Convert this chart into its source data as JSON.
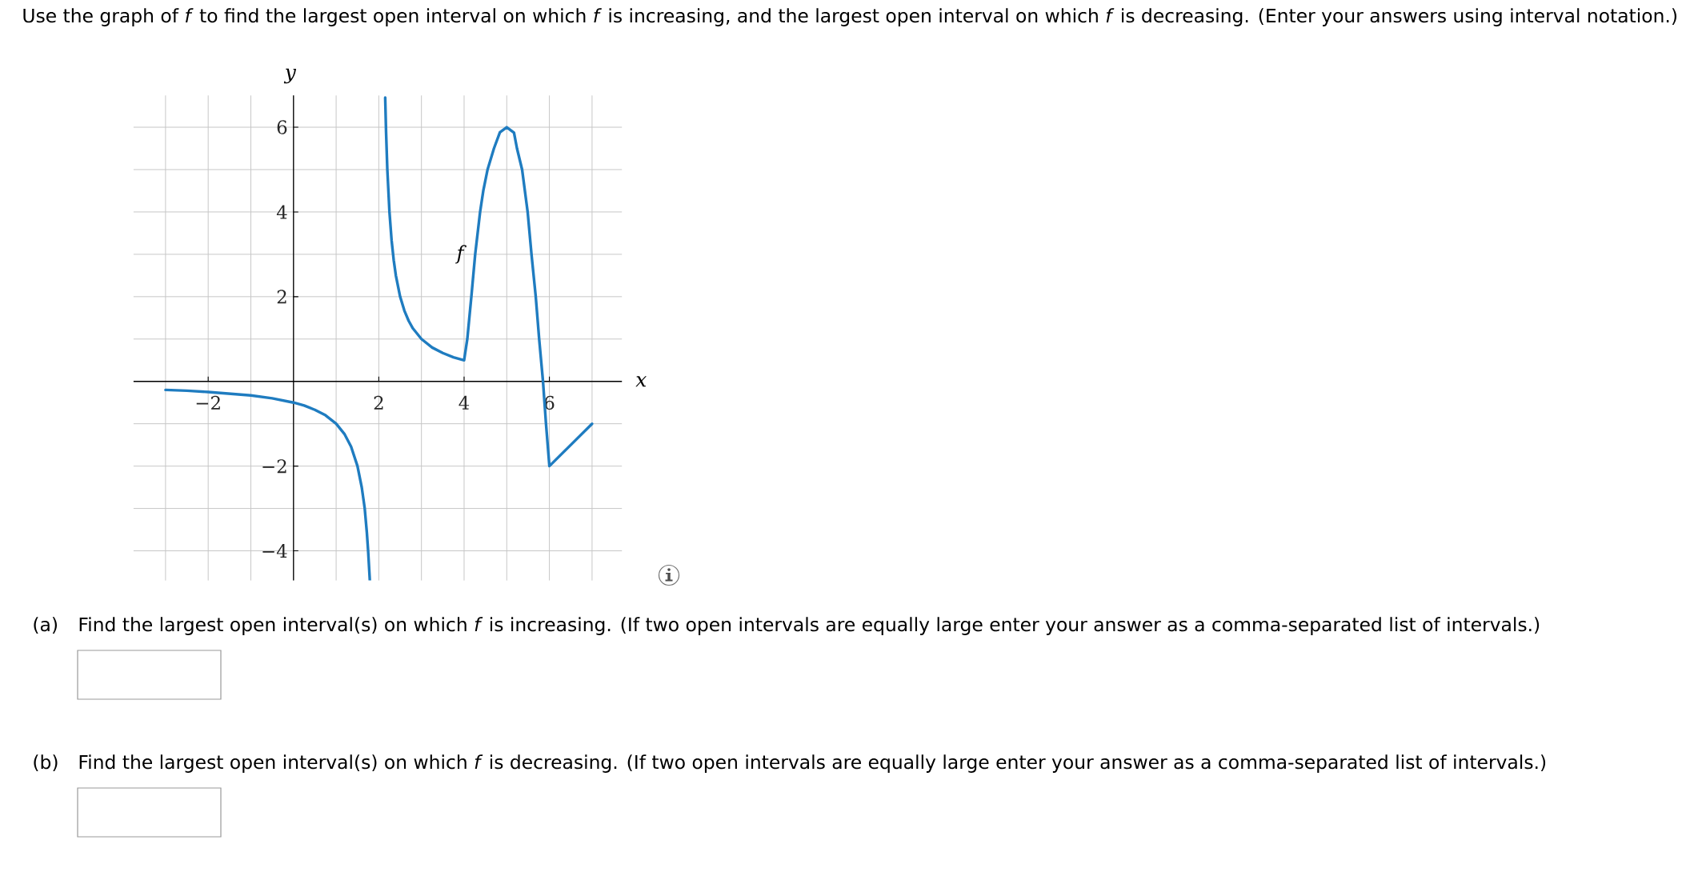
{
  "chart_data": {
    "type": "line",
    "title": "Use the graph of *f* to find the largest open interval on which *f* is increasing, and the largest open interval on which *f* is decreasing. (Enter your answers using interval notation.)",
    "xlabel": "x",
    "ylabel": "y",
    "x": [
      -3,
      -2.5,
      -2,
      -1.5,
      -1,
      -0.5,
      0,
      0.25,
      0.5,
      0.75,
      1,
      1.2,
      1.35,
      1.5,
      1.6,
      1.67,
      1.72,
      1.75,
      1.79,
      2,
      2.15,
      2.17,
      2.2,
      2.25,
      2.3,
      2.35,
      2.4,
      2.5,
      2.6,
      2.7,
      2.8,
      3,
      3.25,
      3.5,
      3.75,
      4,
      4.075,
      4.17,
      4.26,
      4.375,
      4.45,
      4.55,
      4.7,
      4.84,
      5,
      5.17,
      5.24,
      5.36,
      5.49,
      5.58,
      5.68,
      5.76,
      5.85,
      5.92,
      6,
      7
    ],
    "series": [
      {
        "name": "f",
        "color": "#1f7cc0",
        "values": [
          -0.2,
          -0.22,
          -0.25,
          -0.29,
          -0.33,
          -0.4,
          -0.5,
          -0.57,
          -0.67,
          -0.8,
          -1,
          -1.25,
          -1.54,
          -2,
          -2.5,
          -3,
          -3.57,
          -4,
          -4.7,
          null,
          6.7,
          5.9,
          5,
          4,
          3.33,
          2.86,
          2.5,
          2,
          1.67,
          1.43,
          1.25,
          1,
          0.8,
          0.67,
          0.57,
          0.5,
          1,
          2,
          3,
          4,
          4.5,
          5,
          5.5,
          5.88,
          6,
          5.87,
          5.5,
          5,
          4,
          3,
          2,
          1,
          0,
          -1,
          -2,
          -1
        ]
      }
    ],
    "xlim": [
      -3.75,
      7.7
    ],
    "ylim": [
      -4.7,
      6.75
    ],
    "xticks": [
      {
        "value": -2,
        "label": "−2"
      },
      2,
      4,
      6
    ],
    "yticks": [
      {
        "value": -4,
        "label": "−4"
      },
      {
        "value": -2,
        "label": "−2"
      },
      2,
      4,
      6
    ],
    "grid": true,
    "annotations": [
      "(a)",
      "Find the largest open interval(s) on which *f* is increasing. (If two open intervals are equally large enter your answer as a comma-separated list of intervals.)",
      "(b)",
      "Find the largest open interval(s) on which *f* is decreasing. (If two open intervals are equally large enter your answer as a comma-separated list of intervals.)"
    ]
  }
}
